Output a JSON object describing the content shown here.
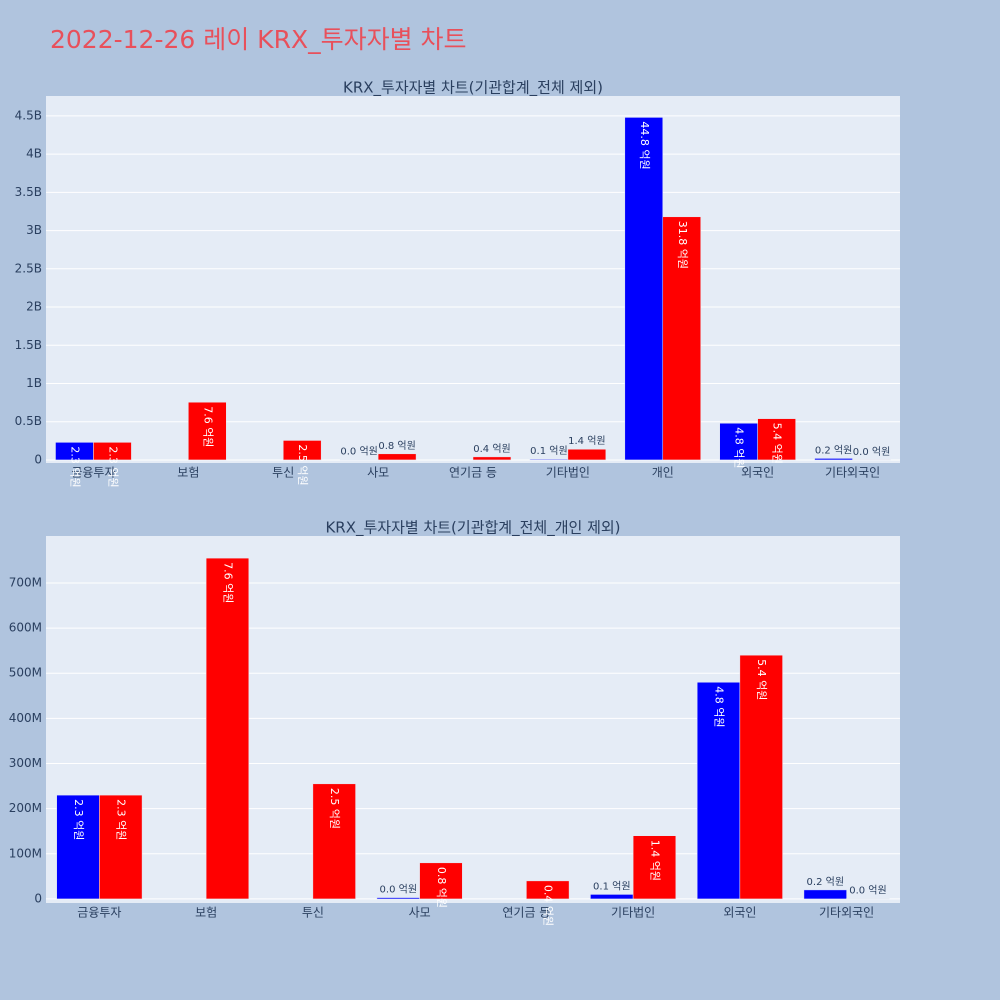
{
  "title": "2022-12-26 레이 KRX_투자자별 차트",
  "chart_data": [
    {
      "type": "bar",
      "title": "KRX_투자자별 차트(기관합계_전체 제외)",
      "categories": [
        "금융투자",
        "보험",
        "투신",
        "사모",
        "연기금 등",
        "기타법인",
        "개인",
        "외국인",
        "기타외국인"
      ],
      "series": [
        {
          "color": "#0000ff",
          "values": [
            230000000,
            null,
            null,
            3000000,
            null,
            10000000,
            4480000000,
            480000000,
            20000000
          ],
          "value_labels": [
            "2.3 억원",
            null,
            null,
            "0.0 억원",
            null,
            "0.1 억원",
            "44.8 억원",
            "4.8 억원",
            "0.2 억원"
          ]
        },
        {
          "color": "#ff0000",
          "values": [
            230000000,
            755000000,
            255000000,
            80000000,
            40000000,
            140000000,
            3180000000,
            540000000,
            1000000
          ],
          "value_labels": [
            "2.3 억원",
            "7.6 억원",
            "2.5 억원",
            "0.8 억원",
            "0.4 억원",
            "1.4 억원",
            "31.8 억원",
            "5.4 억원",
            "0.0 억원"
          ]
        }
      ],
      "ylim": [
        -40000000,
        4760000000
      ],
      "yticks": [
        0,
        {
          "value": 500000000,
          "label": "0.5B"
        },
        {
          "value": 1000000000,
          "label": "1B"
        },
        {
          "value": 1500000000,
          "label": "1.5B"
        },
        {
          "value": 2000000000,
          "label": "2B"
        },
        {
          "value": 2500000000,
          "label": "2.5B"
        },
        {
          "value": 3000000000,
          "label": "3B"
        },
        {
          "value": 3500000000,
          "label": "3.5B"
        },
        {
          "value": 4000000000,
          "label": "4B"
        },
        {
          "value": 4500000000,
          "label": "4.5B"
        }
      ],
      "grid": true
    },
    {
      "type": "bar",
      "title": "KRX_투자자별 차트(기관합계_전체_개인 제외)",
      "categories": [
        "금융투자",
        "보험",
        "투신",
        "사모",
        "연기금 등",
        "기타법인",
        "외국인",
        "기타외국인"
      ],
      "series": [
        {
          "color": "#0000ff",
          "values": [
            230000000,
            null,
            null,
            3000000,
            null,
            10000000,
            480000000,
            20000000
          ],
          "value_labels": [
            "2.3 억원",
            null,
            null,
            "0.0 억원",
            null,
            "0.1 억원",
            "4.8 억원",
            "0.2 억원"
          ]
        },
        {
          "color": "#ff0000",
          "values": [
            230000000,
            755000000,
            255000000,
            80000000,
            40000000,
            140000000,
            540000000,
            1000000
          ],
          "value_labels": [
            "2.3 억원",
            "7.6 억원",
            "2.5 억원",
            "0.8 억원",
            "0.4 억원",
            "1.4 억원",
            "5.4 억원",
            "0.0 억원"
          ]
        }
      ],
      "ylim": [
        -9000000,
        804000000
      ],
      "yticks": [
        0,
        {
          "value": 100000000,
          "label": "100M"
        },
        {
          "value": 200000000,
          "label": "200M"
        },
        {
          "value": 300000000,
          "label": "300M"
        },
        {
          "value": 400000000,
          "label": "400M"
        },
        {
          "value": 500000000,
          "label": "500M"
        },
        {
          "value": 600000000,
          "label": "600M"
        },
        {
          "value": 700000000,
          "label": "700M"
        }
      ],
      "grid": true
    }
  ]
}
